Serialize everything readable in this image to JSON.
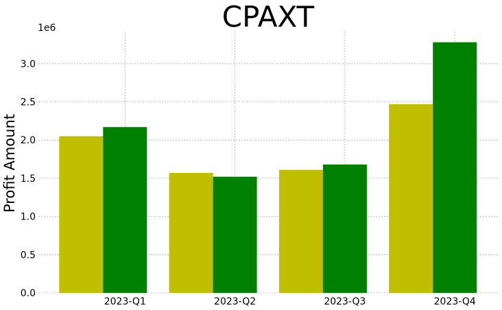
{
  "chart_data": {
    "type": "bar",
    "title": "CPAXT",
    "xlabel": "",
    "ylabel": "Profit Amount",
    "scale_label": "1e6",
    "categories": [
      "2023-Q1",
      "2023-Q2",
      "2023-Q3",
      "2023-Q4"
    ],
    "series": [
      {
        "color": "#bfbf00",
        "values": [
          2050000,
          1570000,
          1610000,
          2470000
        ]
      },
      {
        "color": "#008000",
        "values": [
          2170000,
          1520000,
          1680000,
          3280000
        ]
      }
    ],
    "ylim": [
      0,
      3420000
    ],
    "yticks": [
      0,
      500000,
      1000000,
      1500000,
      2000000,
      2500000,
      3000000
    ],
    "ytick_labels": [
      "0.0",
      "0.5",
      "1.0",
      "1.5",
      "2.0",
      "2.5",
      "3.0"
    ],
    "grid": true,
    "legend": "none"
  }
}
